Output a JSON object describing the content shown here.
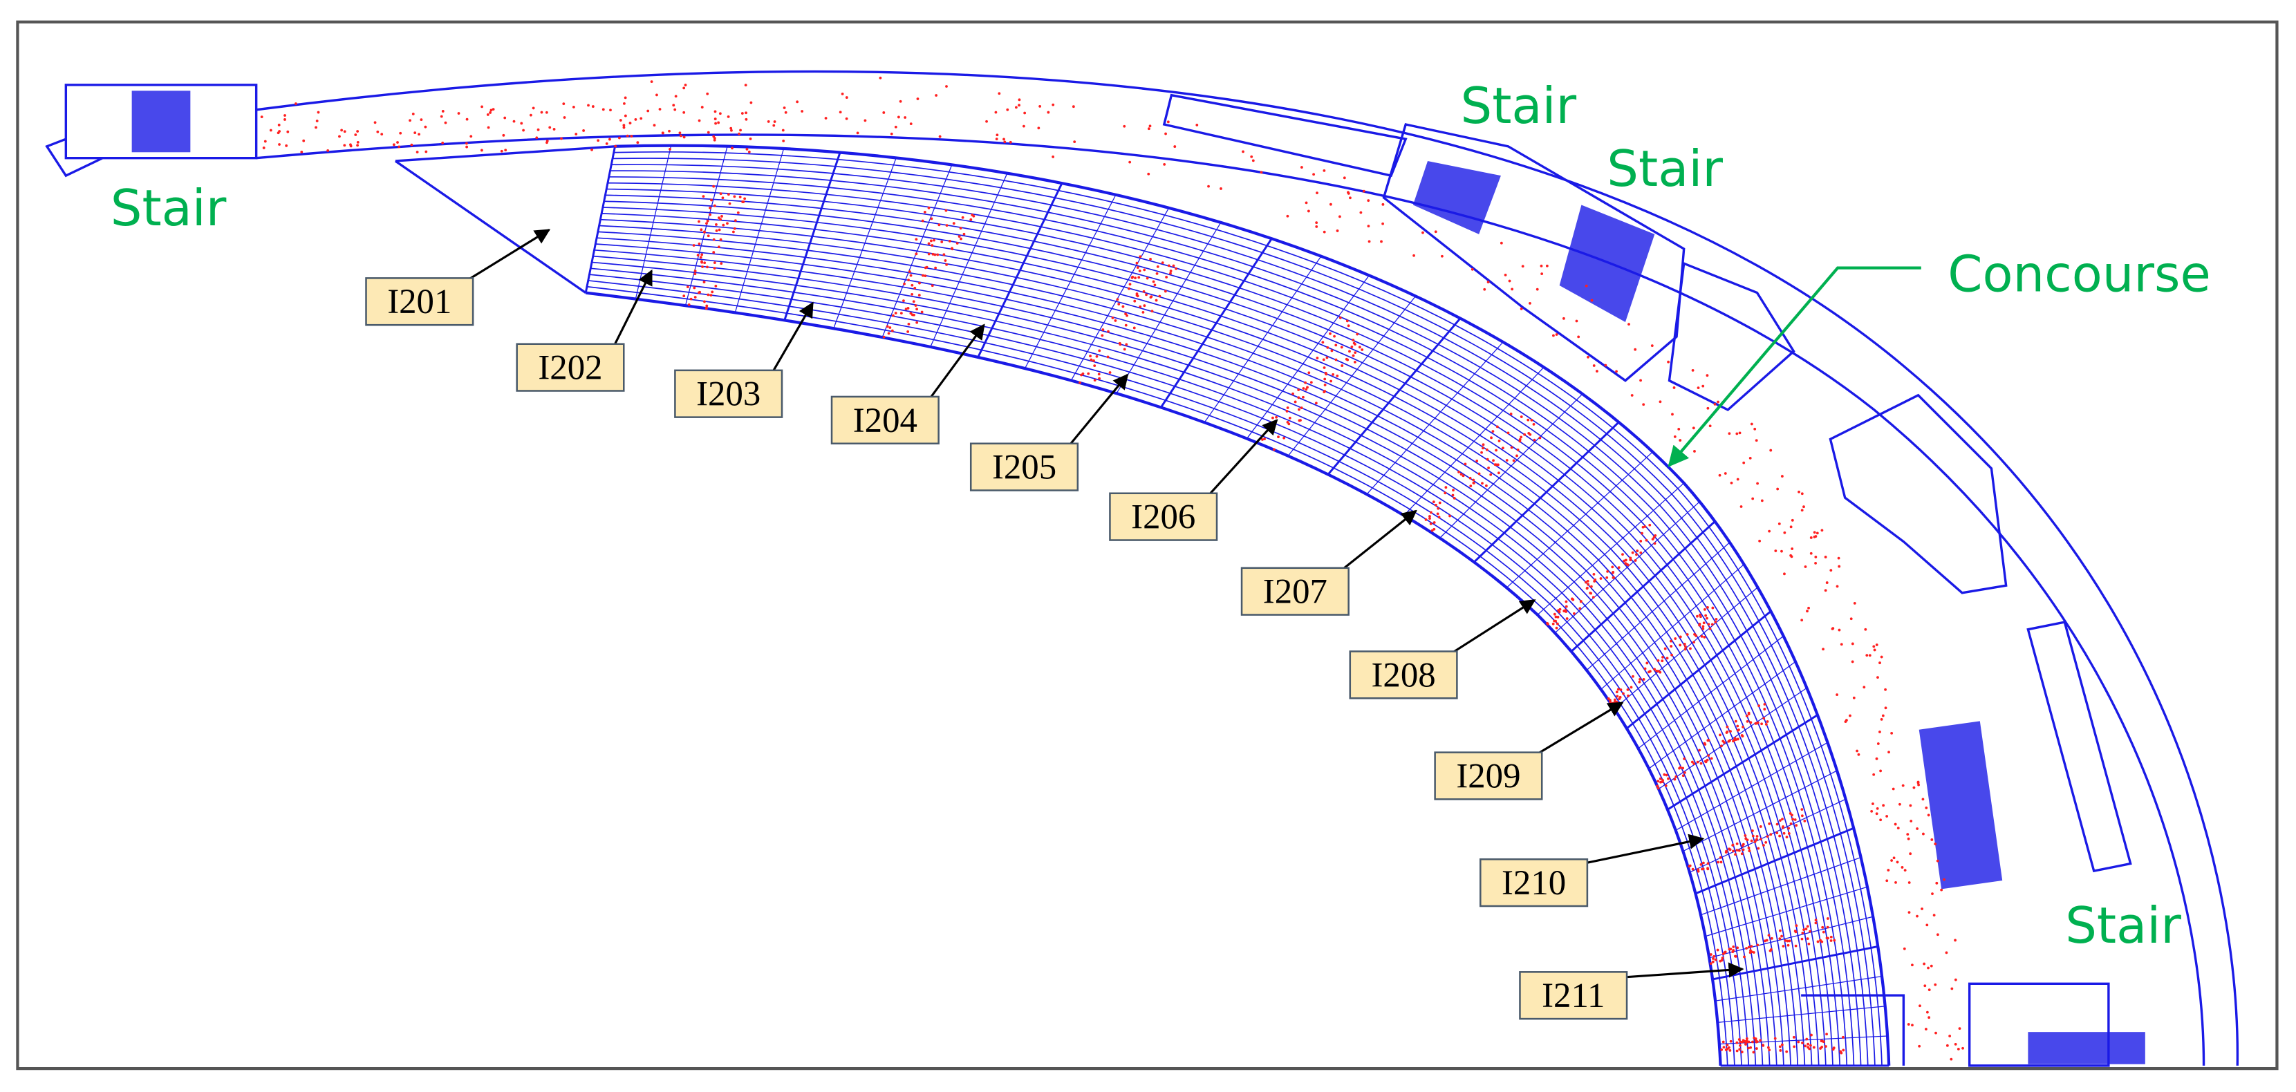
{
  "stairs": [
    {
      "label": "Stair"
    },
    {
      "label": "Stair"
    },
    {
      "label": "Stair"
    },
    {
      "label": "Stair"
    }
  ],
  "concourse": "Concourse",
  "sections": [
    "I201",
    "I202",
    "I203",
    "I204",
    "I205",
    "I206",
    "I207",
    "I208",
    "I209",
    "I210",
    "I211"
  ]
}
